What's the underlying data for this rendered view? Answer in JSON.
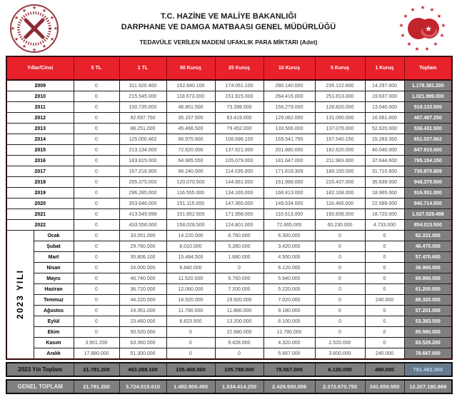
{
  "header": {
    "title_line1": "T.C. HAZİNE VE MALİYE BAKANLIĞI",
    "title_line2": "DARPHANE VE DAMGA MATBAASI GENEL MÜDÜRLÜĞÜ",
    "subtitle": "TEDAVÜLE VERİLEN MADENİ UFAKLIK PARA MİKTARI (Adet)",
    "left_logo_icon": "mint-seal-emblem",
    "right_logo_icon": "turkey-crescent-star-emblem"
  },
  "colors": {
    "header_red": "#e8212b",
    "totals_gray": "#7f7f7f",
    "selected_cell_text": "#b9d8f5",
    "emblem_red": "#c2242c",
    "emblem_maroon": "#9a3a42"
  },
  "table": {
    "columns": [
      "Yıllar/Cinsi",
      "5 TL",
      "1 TL",
      "50 Kuruş",
      "25 Kuruş",
      "10 Kuruş",
      "5 Kuruş",
      "1 Kuruş",
      "Toplam"
    ],
    "year_rows": [
      {
        "label": "2009",
        "values": [
          "0",
          "311.920.400",
          "162.840.100",
          "174.061.100",
          "280.140.000",
          "235.122.600",
          "14.297.000",
          "1.178.381.200"
        ]
      },
      {
        "label": "2010",
        "values": [
          "0",
          "215.545.000",
          "118.673.000",
          "151.915.000",
          "264.416.000",
          "251.813.000",
          "19.637.000",
          "1.021.999.000"
        ]
      },
      {
        "label": "2011",
        "values": [
          "0",
          "100.735.000",
          "46.861.500",
          "73.398.000",
          "156.279.000",
          "128.820.000",
          "13.040.000",
          "519.133.500"
        ]
      },
      {
        "label": "2012",
        "values": [
          "0",
          "92.697.750",
          "35.157.500",
          "63.419.000",
          "129.062.000",
          "131.090.000",
          "16.061.000",
          "467.487.250"
        ]
      },
      {
        "label": "2013",
        "values": [
          "0",
          "88.251.000",
          "45.466.500",
          "79.452.000",
          "133.566.000",
          "137.076.000",
          "52.620.000",
          "536.431.500"
        ]
      },
      {
        "label": "2014",
        "values": [
          "0",
          "125.000.462",
          "66.975.800",
          "106.696.150",
          "169.541.750",
          "167.540.150",
          "15.283.350",
          "651.037.662"
        ]
      },
      {
        "label": "2015",
        "values": [
          "0",
          "213.134.000",
          "72.620.000",
          "137.621.000",
          "201.880.000",
          "182.620.000",
          "40.040.000",
          "847.915.000"
        ]
      },
      {
        "label": "2016",
        "values": [
          "0",
          "183.815.000",
          "64.985.550",
          "105.079.000",
          "181.647.000",
          "211.983.000",
          "37.644.600",
          "785.154.150"
        ]
      },
      {
        "label": "2017",
        "values": [
          "0",
          "167.216.900",
          "66.240.000",
          "114.035.000",
          "171.618.309",
          "180.150.000",
          "31.710.600",
          "730.970.809"
        ]
      },
      {
        "label": "2018",
        "values": [
          "0",
          "265.375.000",
          "120.070.500",
          "144.661.000",
          "161.988.000",
          "220.437.000",
          "35.839.000",
          "948.370.500"
        ]
      },
      {
        "label": "2019",
        "values": [
          "0",
          "296.285.000",
          "116.555.000",
          "134.165.000",
          "168.413.000",
          "182.168.000",
          "18.965.000",
          "916.551.000"
        ]
      },
      {
        "label": "2020",
        "values": [
          "0",
          "353.646.000",
          "151.115.000",
          "147.365.000",
          "149.534.000",
          "116.465.000",
          "22.589.000",
          "940.714.000"
        ]
      },
      {
        "label": "2021",
        "values": [
          "0",
          "413.549.998",
          "151.852.500",
          "171.958.000",
          "110.613.000",
          "160.836.000",
          "18.720.000",
          "1.027.529.498"
        ]
      },
      {
        "label": "2022",
        "values": [
          "0",
          "433.556.000",
          "158.028.500",
          "124.801.000",
          "72.665.000",
          "60.230.000",
          "4.733.000",
          "854.013.500"
        ]
      }
    ],
    "month_group_label": "2023 YILI",
    "month_rows": [
      {
        "label": "Ocak",
        "values": [
          "0",
          "33.051.000",
          "14.220.000",
          "8.760.000",
          "6.300.000",
          "0",
          "0",
          "62.331.000"
        ]
      },
      {
        "label": "Şubat",
        "values": [
          "0",
          "29.760.000",
          "8.010.000",
          "5.280.000",
          "3.420.000",
          "0",
          "0",
          "46.470.000"
        ]
      },
      {
        "label": "Mart",
        "values": [
          "0",
          "35.806.100",
          "15.484.500",
          "1.680.000",
          "4.500.000",
          "0",
          "0",
          "57.470.600"
        ]
      },
      {
        "label": "Nisan",
        "values": [
          "0",
          "24.000.000",
          "6.840.000",
          "0",
          "6.120.000",
          "0",
          "0",
          "36.960.000"
        ]
      },
      {
        "label": "Mayıs",
        "values": [
          "0",
          "46.740.000",
          "11.520.000",
          "5.760.000",
          "5.940.000",
          "0",
          "0",
          "69.960.000"
        ]
      },
      {
        "label": "Haziran",
        "values": [
          "0",
          "36.720.000",
          "12.060.000",
          "7.200.000",
          "5.220.000",
          "0",
          "0",
          "61.200.000"
        ]
      },
      {
        "label": "Temmuz",
        "values": [
          "0",
          "44.220.000",
          "16.920.000",
          "19.920.000",
          "7.020.000",
          "0",
          "240.000",
          "88.320.000"
        ]
      },
      {
        "label": "Ağustos",
        "values": [
          "0",
          "24.351.000",
          "11.790.000",
          "11.880.000",
          "9.180.000",
          "0",
          "0",
          "57.201.000"
        ]
      },
      {
        "label": "Eylül",
        "values": [
          "0",
          "23.460.000",
          "8.623.500",
          "13.200.000",
          "8.100.000",
          "0",
          "0",
          "53.383.500"
        ]
      },
      {
        "label": "Ekim",
        "values": [
          "0",
          "50.520.000",
          "0",
          "22.680.000",
          "12.780.000",
          "0",
          "0",
          "85.980.000"
        ]
      },
      {
        "label": "Kasım",
        "values": [
          "3.901.200",
          "63.360.000",
          "0",
          "9.428.000",
          "4.320.000",
          "2.520.000",
          "0",
          "83.529.200"
        ]
      },
      {
        "label": "Aralık",
        "values": [
          "17.880.000",
          "51.300.000",
          "0",
          "0",
          "5.667.000",
          "3.600.000",
          "240.000",
          "78.687.000"
        ]
      }
    ],
    "totals_2023": {
      "label": "2023 Yılı Toplam",
      "values": [
        "21.781.200",
        "463.288.100",
        "105.468.000",
        "105.788.000",
        "78.567.000",
        "6.120.000",
        "480.000",
        "781.492.300"
      ],
      "selected_value_index": 7
    },
    "grand_total": {
      "label": "GENEL TOPLAM",
      "values": [
        "21.781.200",
        "3.724.015.610",
        "1.482.909.450",
        "1.534.414.250",
        "2.429.930.059",
        "2.372.670.750",
        "341.659.550",
        "12.207.180.869"
      ]
    }
  }
}
